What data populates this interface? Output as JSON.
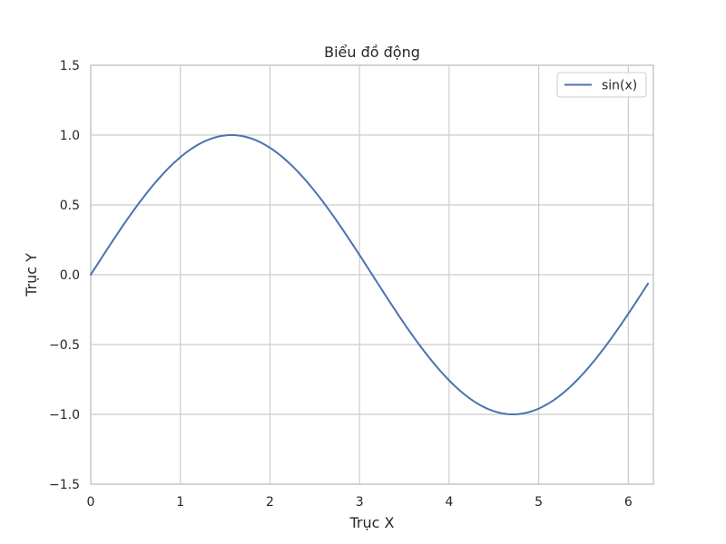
{
  "chart_data": {
    "type": "line",
    "title": "Biểu đồ động",
    "xlabel": "Trục X",
    "ylabel": "Trục Y",
    "xlim": [
      0,
      6.28
    ],
    "ylim": [
      -1.5,
      1.5
    ],
    "x_ticks": [
      0,
      1,
      2,
      3,
      4,
      5,
      6
    ],
    "x_tick_labels": [
      "0",
      "1",
      "2",
      "3",
      "4",
      "5",
      "6"
    ],
    "y_ticks": [
      -1.5,
      -1.0,
      -0.5,
      0.0,
      0.5,
      1.0,
      1.5
    ],
    "y_tick_labels": [
      "−1.5",
      "−1.0",
      "−0.5",
      "0.0",
      "0.5",
      "1.0",
      "1.5"
    ],
    "grid": true,
    "legend_position": "top-right",
    "series": [
      {
        "name": "sin(x)",
        "color": "#4c72b0",
        "function": "sin",
        "x_start": 0,
        "x_end": 6.22
      }
    ]
  }
}
